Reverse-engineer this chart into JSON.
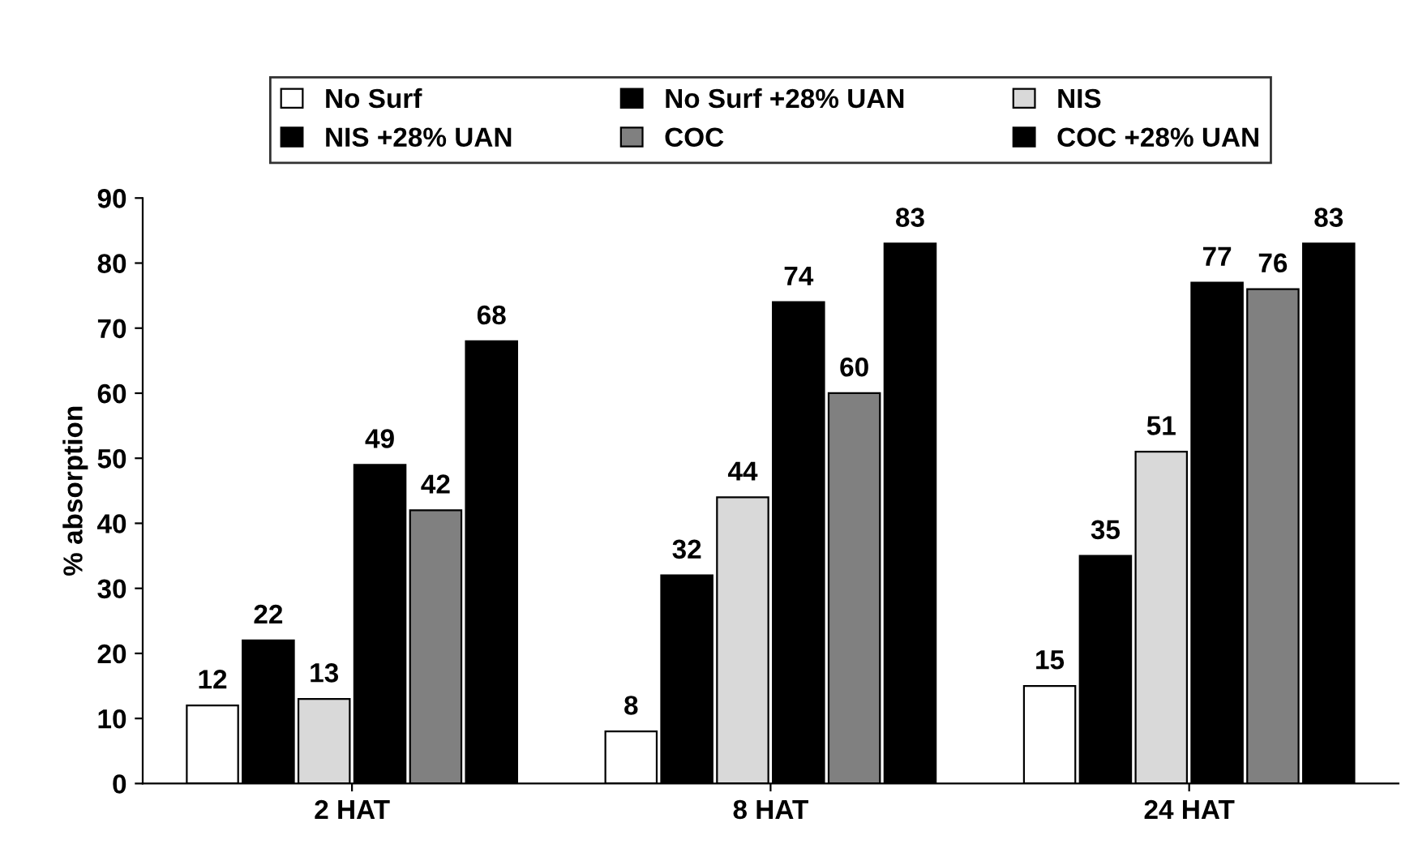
{
  "chart_data": {
    "type": "bar",
    "ylabel": "% absorption",
    "categories": [
      "2 HAT",
      "8 HAT",
      "24 HAT"
    ],
    "series": [
      {
        "name": "No Surf",
        "color": "#ffffff",
        "values": [
          12,
          8,
          15
        ]
      },
      {
        "name": "No Surf +28% UAN",
        "color": "#000000",
        "values": [
          22,
          32,
          35
        ]
      },
      {
        "name": "NIS",
        "color": "#d9d9d9",
        "values": [
          13,
          44,
          51
        ]
      },
      {
        "name": "NIS +28% UAN",
        "color": "#000000",
        "values": [
          49,
          74,
          77
        ]
      },
      {
        "name": "COC",
        "color": "#808080",
        "values": [
          42,
          60,
          76
        ]
      },
      {
        "name": "COC +28% UAN",
        "color": "#000000",
        "values": [
          68,
          83,
          83
        ]
      }
    ],
    "ylim": [
      0,
      90
    ],
    "yticks": [
      0,
      10,
      20,
      30,
      40,
      50,
      60,
      70,
      80,
      90
    ],
    "data_labels": true,
    "legend": "top",
    "grid": false
  }
}
